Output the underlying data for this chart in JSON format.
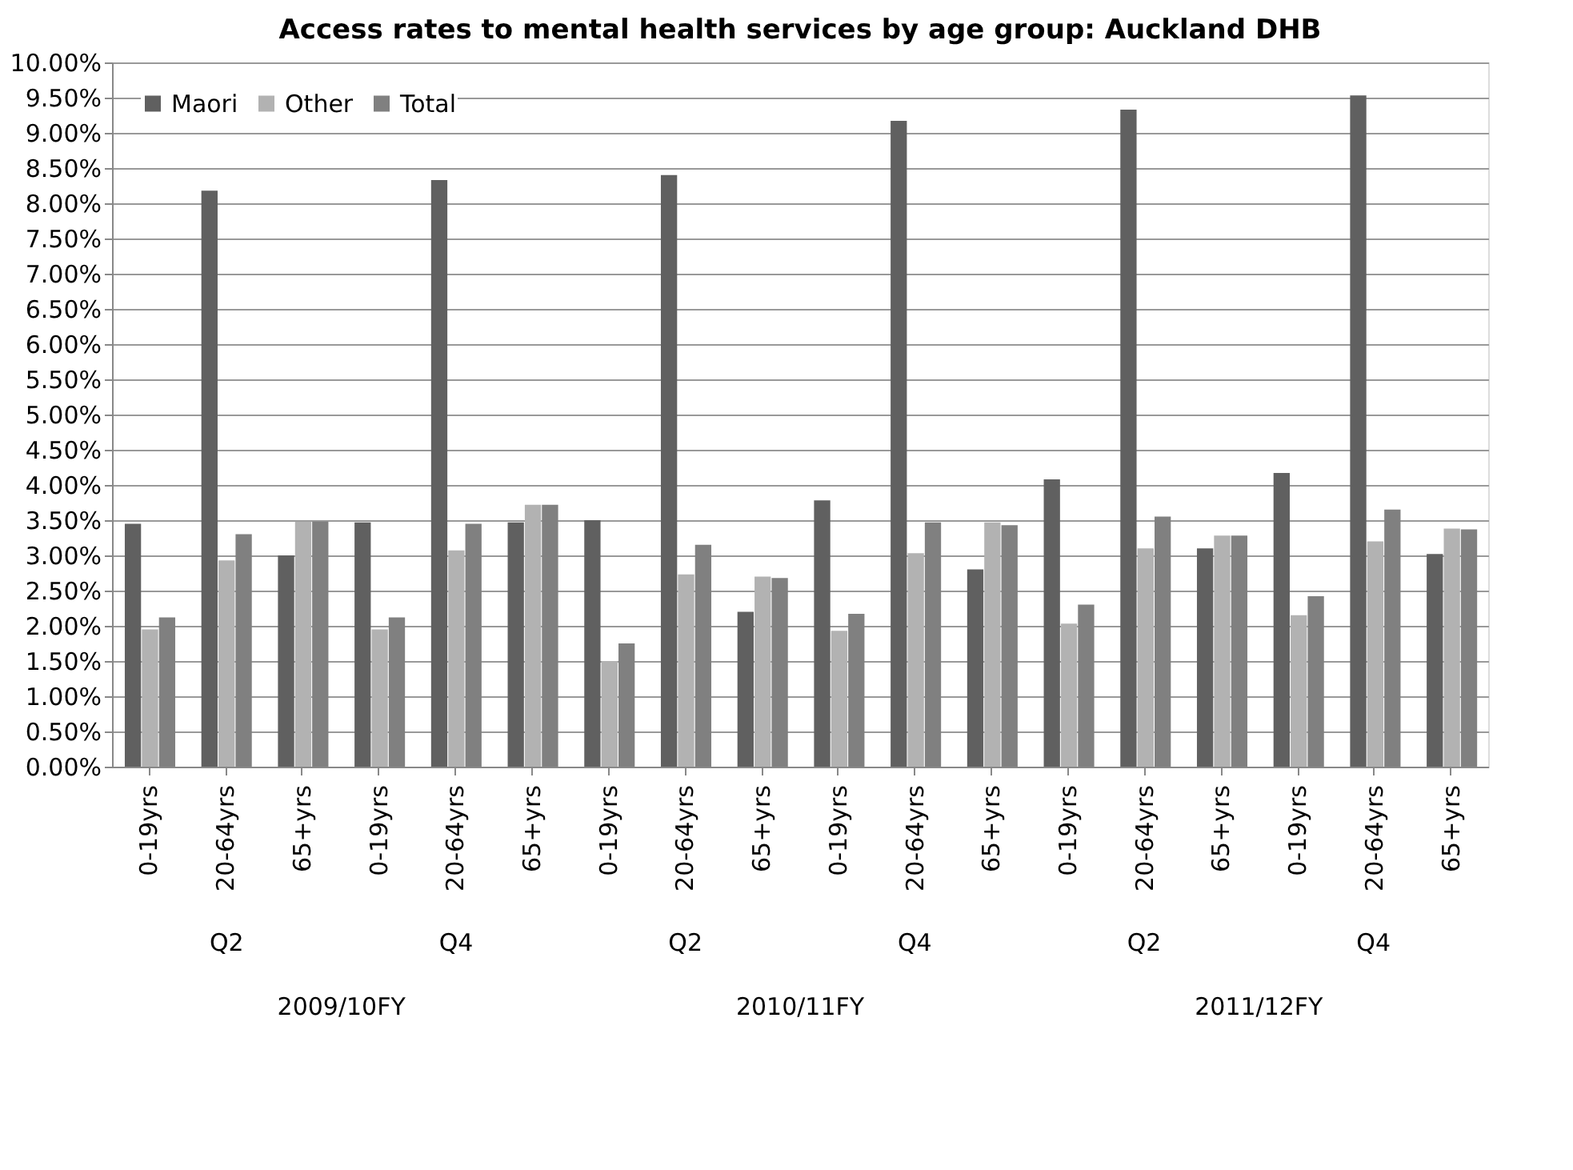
{
  "chart_data": {
    "type": "bar",
    "title": "Access rates to mental health services by age group: Auckland DHB",
    "categories": [
      "0-19yrs",
      "20-64yrs",
      "65+yrs",
      "0-19yrs",
      "20-64yrs",
      "65+yrs",
      "0-19yrs",
      "20-64yrs",
      "65+yrs",
      "0-19yrs",
      "20-64yrs",
      "65+yrs",
      "0-19yrs",
      "20-64yrs",
      "65+yrs",
      "0-19yrs",
      "20-64yrs",
      "65+yrs"
    ],
    "series": [
      {
        "name": "Maori",
        "color": "#606060",
        "values": [
          3.45,
          8.18,
          3.0,
          3.47,
          8.33,
          3.47,
          3.5,
          8.4,
          2.2,
          3.78,
          9.17,
          2.8,
          4.08,
          9.33,
          3.1,
          4.17,
          9.53,
          3.02
        ]
      },
      {
        "name": "Other",
        "color": "#b2b2b2",
        "values": [
          1.95,
          2.93,
          3.48,
          1.95,
          3.07,
          3.72,
          1.5,
          2.73,
          2.7,
          1.93,
          3.03,
          3.47,
          2.03,
          3.1,
          3.28,
          2.15,
          3.2,
          3.38
        ]
      },
      {
        "name": "Total",
        "color": "#808080",
        "values": [
          2.12,
          3.3,
          3.48,
          2.12,
          3.45,
          3.72,
          1.75,
          3.15,
          2.68,
          2.17,
          3.47,
          3.43,
          2.3,
          3.55,
          3.28,
          2.42,
          3.65,
          3.37
        ]
      }
    ],
    "ylim": [
      0,
      10
    ],
    "yticks": [
      {
        "value": 0,
        "label": "0.00%"
      },
      {
        "value": 0.5,
        "label": "0.50%"
      },
      {
        "value": 1,
        "label": "1.00%"
      },
      {
        "value": 1.5,
        "label": "1.50%"
      },
      {
        "value": 2,
        "label": "2.00%"
      },
      {
        "value": 2.5,
        "label": "2.50%"
      },
      {
        "value": 3,
        "label": "3.00%"
      },
      {
        "value": 3.5,
        "label": "3.50%"
      },
      {
        "value": 4,
        "label": "4.00%"
      },
      {
        "value": 4.5,
        "label": "4.50%"
      },
      {
        "value": 5,
        "label": "5.00%"
      },
      {
        "value": 5.5,
        "label": "5.50%"
      },
      {
        "value": 6,
        "label": "6.00%"
      },
      {
        "value": 6.5,
        "label": "6.50%"
      },
      {
        "value": 7,
        "label": "7.00%"
      },
      {
        "value": 7.5,
        "label": "7.50%"
      },
      {
        "value": 8,
        "label": "8.00%"
      },
      {
        "value": 8.5,
        "label": "8.50%"
      },
      {
        "value": 9,
        "label": "9.00%"
      },
      {
        "value": 9.5,
        "label": "9.50%"
      },
      {
        "value": 10,
        "label": "10.00%"
      }
    ],
    "annotations": [
      "Q2",
      "Q4",
      "Q2",
      "Q4",
      "Q2",
      "Q4",
      "2009/10FY",
      "2010/11FY",
      "2011/12FY"
    ],
    "grid": "y",
    "legend": "top left"
  }
}
